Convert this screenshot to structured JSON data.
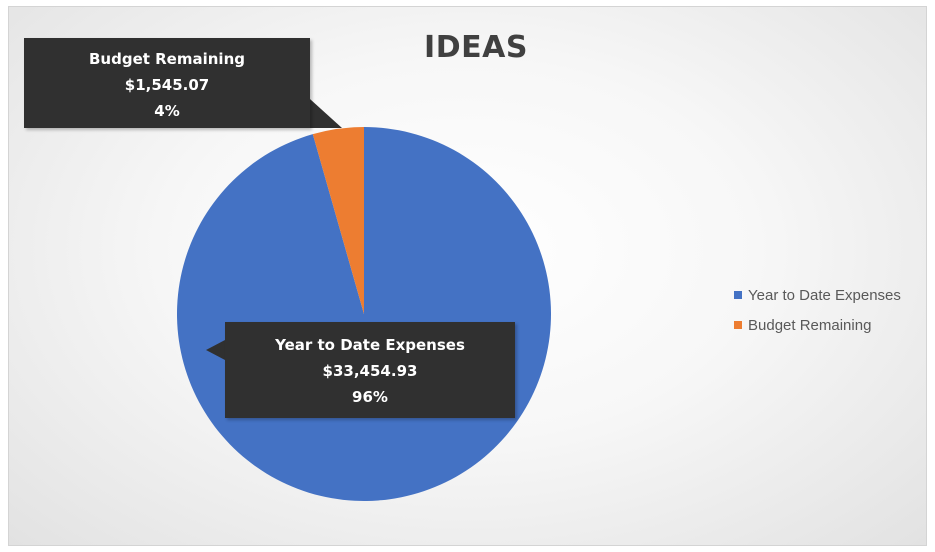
{
  "chart_data": {
    "type": "pie",
    "title": "IDEAS",
    "categories": [
      "Year to Date Expenses",
      "Budget Remaining"
    ],
    "values": [
      33454.93,
      1545.07
    ],
    "percentages": [
      96,
      4
    ],
    "colors": [
      "#4472C4",
      "#ED7D31"
    ],
    "legend": {
      "position": "right",
      "entries": [
        "Year to Date Expenses",
        "Budget Remaining"
      ]
    },
    "data_labels": [
      {
        "category": "Year to Date Expenses",
        "value": "$33,454.93",
        "percent": "96%"
      },
      {
        "category": "Budget Remaining",
        "value": "$1,545.07",
        "percent": "4%"
      }
    ]
  }
}
